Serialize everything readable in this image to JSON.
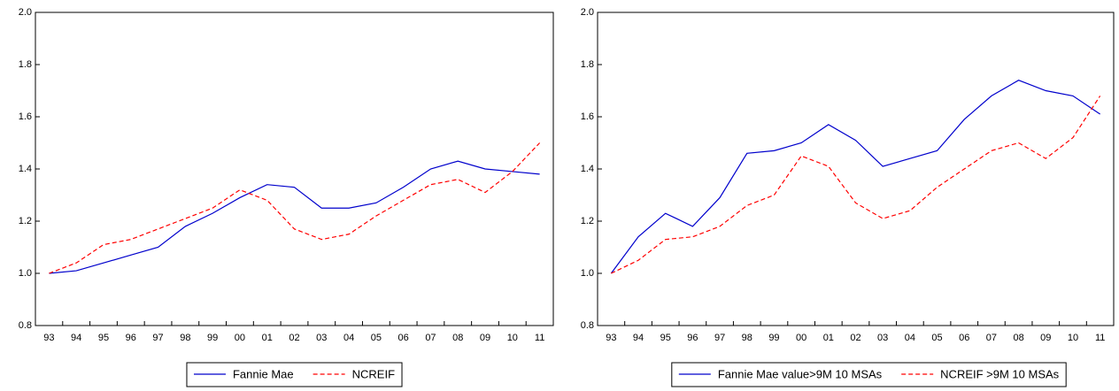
{
  "chart_data": [
    {
      "type": "line",
      "categories": [
        "93",
        "94",
        "95",
        "96",
        "97",
        "98",
        "99",
        "00",
        "01",
        "02",
        "03",
        "04",
        "05",
        "06",
        "07",
        "08",
        "09",
        "10",
        "11"
      ],
      "series": [
        {
          "name": "Fannie Mae",
          "color": "#0000cc",
          "style": "solid",
          "values": [
            1.0,
            1.01,
            1.04,
            1.07,
            1.1,
            1.18,
            1.23,
            1.29,
            1.34,
            1.33,
            1.25,
            1.25,
            1.27,
            1.33,
            1.4,
            1.43,
            1.4,
            1.39,
            1.38
          ]
        },
        {
          "name": "NCREIF",
          "color": "#ff0000",
          "style": "dashed",
          "values": [
            1.0,
            1.04,
            1.11,
            1.13,
            1.17,
            1.21,
            1.25,
            1.32,
            1.28,
            1.17,
            1.13,
            1.15,
            1.22,
            1.28,
            1.34,
            1.36,
            1.31,
            1.39,
            1.5
          ]
        }
      ],
      "ylim": [
        0.8,
        2.0
      ],
      "yticks": [
        0.8,
        {
          "value": 1.0,
          "label": "1.0"
        },
        1.2,
        1.4,
        1.6,
        1.8,
        {
          "value": 2.0,
          "label": "2.0"
        }
      ]
    },
    {
      "type": "line",
      "categories": [
        "93",
        "94",
        "95",
        "96",
        "97",
        "98",
        "99",
        "00",
        "01",
        "02",
        "03",
        "04",
        "05",
        "06",
        "07",
        "08",
        "09",
        "10",
        "11"
      ],
      "series": [
        {
          "name": "Fannie Mae value>9M 10 MSAs",
          "color": "#0000cc",
          "style": "solid",
          "values": [
            1.0,
            1.14,
            1.23,
            1.18,
            1.29,
            1.46,
            1.47,
            1.5,
            1.57,
            1.51,
            1.41,
            1.44,
            1.47,
            1.59,
            1.68,
            1.74,
            1.7,
            1.68,
            1.61
          ]
        },
        {
          "name": "NCREIF >9M 10 MSAs",
          "color": "#ff0000",
          "style": "dashed",
          "values": [
            1.0,
            1.05,
            1.13,
            1.14,
            1.18,
            1.26,
            1.3,
            1.45,
            1.41,
            1.27,
            1.21,
            1.24,
            1.33,
            1.4,
            1.47,
            1.5,
            1.44,
            1.52,
            1.68
          ]
        }
      ],
      "ylim": [
        0.8,
        2.0
      ],
      "yticks": [
        0.8,
        {
          "value": 1.0,
          "label": "1.0"
        },
        1.2,
        1.4,
        1.6,
        1.8,
        {
          "value": 2.0,
          "label": "2.0"
        }
      ]
    }
  ]
}
